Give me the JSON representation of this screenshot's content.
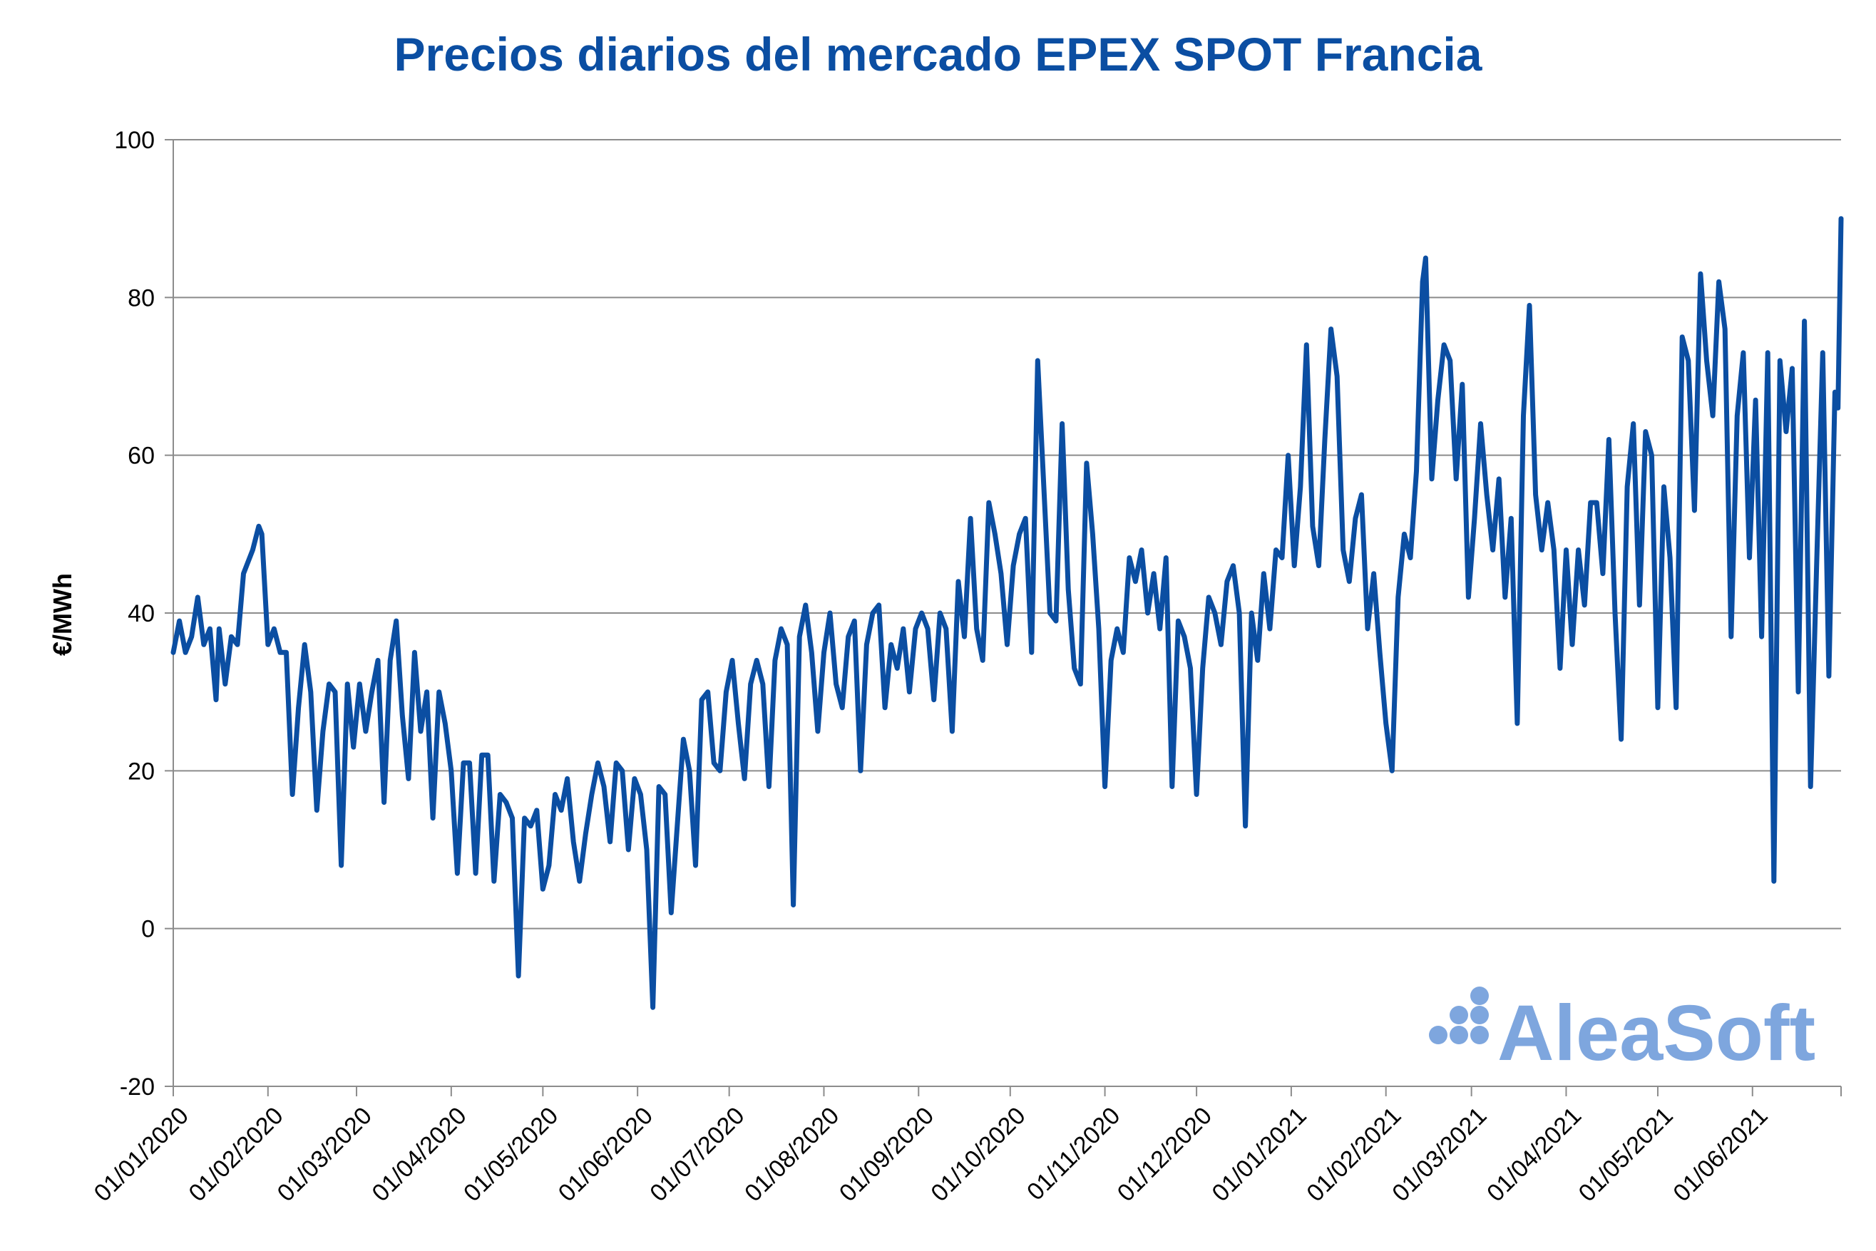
{
  "chart_data": {
    "type": "line",
    "title": "Precios diarios del mercado EPEX SPOT Francia",
    "xlabel": "",
    "ylabel": "€/MWh",
    "ylim": [
      -20,
      100
    ],
    "yticks": [
      -20,
      0,
      20,
      40,
      60,
      80,
      100
    ],
    "grid": true,
    "line_color": "#0b4ea2",
    "title_color": "#0b4ea2",
    "logo_text": "AleaSoft",
    "logo_color": "#7ea6de",
    "x_tick_labels": [
      "01/01/2020",
      "01/02/2020",
      "01/03/2020",
      "01/04/2020",
      "01/05/2020",
      "01/06/2020",
      "01/07/2020",
      "01/08/2020",
      "01/09/2020",
      "01/10/2020",
      "01/11/2020",
      "01/12/2020",
      "01/01/2021",
      "01/02/2021",
      "01/03/2021",
      "01/04/2021",
      "01/05/2021",
      "01/06/2021"
    ],
    "x_start": "2020-01-01",
    "x_end": "2021-06-30",
    "series": [
      {
        "name": "",
        "points": [
          [
            "2020-01-01",
            35
          ],
          [
            "2020-01-03",
            39
          ],
          [
            "2020-01-05",
            35
          ],
          [
            "2020-01-07",
            37
          ],
          [
            "2020-01-09",
            42
          ],
          [
            "2020-01-11",
            36
          ],
          [
            "2020-01-13",
            38
          ],
          [
            "2020-01-15",
            29
          ],
          [
            "2020-01-16",
            38
          ],
          [
            "2020-01-18",
            31
          ],
          [
            "2020-01-20",
            37
          ],
          [
            "2020-01-22",
            36
          ],
          [
            "2020-01-24",
            45
          ],
          [
            "2020-01-27",
            48
          ],
          [
            "2020-01-29",
            51
          ],
          [
            "2020-01-30",
            50
          ],
          [
            "2020-02-01",
            36
          ],
          [
            "2020-02-03",
            38
          ],
          [
            "2020-02-05",
            35
          ],
          [
            "2020-02-07",
            35
          ],
          [
            "2020-02-09",
            17
          ],
          [
            "2020-02-11",
            28
          ],
          [
            "2020-02-13",
            36
          ],
          [
            "2020-02-15",
            30
          ],
          [
            "2020-02-17",
            15
          ],
          [
            "2020-02-19",
            25
          ],
          [
            "2020-02-21",
            31
          ],
          [
            "2020-02-23",
            30
          ],
          [
            "2020-02-25",
            8
          ],
          [
            "2020-02-27",
            31
          ],
          [
            "2020-02-29",
            23
          ],
          [
            "2020-03-02",
            31
          ],
          [
            "2020-03-04",
            25
          ],
          [
            "2020-03-06",
            30
          ],
          [
            "2020-03-08",
            34
          ],
          [
            "2020-03-10",
            16
          ],
          [
            "2020-03-12",
            34
          ],
          [
            "2020-03-14",
            39
          ],
          [
            "2020-03-16",
            27
          ],
          [
            "2020-03-18",
            19
          ],
          [
            "2020-03-20",
            35
          ],
          [
            "2020-03-22",
            25
          ],
          [
            "2020-03-24",
            30
          ],
          [
            "2020-03-26",
            14
          ],
          [
            "2020-03-28",
            30
          ],
          [
            "2020-03-30",
            26
          ],
          [
            "2020-04-01",
            20
          ],
          [
            "2020-04-03",
            7
          ],
          [
            "2020-04-05",
            21
          ],
          [
            "2020-04-07",
            21
          ],
          [
            "2020-04-09",
            7
          ],
          [
            "2020-04-11",
            22
          ],
          [
            "2020-04-13",
            22
          ],
          [
            "2020-04-15",
            6
          ],
          [
            "2020-04-17",
            17
          ],
          [
            "2020-04-19",
            16
          ],
          [
            "2020-04-21",
            14
          ],
          [
            "2020-04-23",
            -6
          ],
          [
            "2020-04-25",
            14
          ],
          [
            "2020-04-27",
            13
          ],
          [
            "2020-04-29",
            15
          ],
          [
            "2020-05-01",
            5
          ],
          [
            "2020-05-03",
            8
          ],
          [
            "2020-05-05",
            17
          ],
          [
            "2020-05-07",
            15
          ],
          [
            "2020-05-09",
            19
          ],
          [
            "2020-05-11",
            11
          ],
          [
            "2020-05-13",
            6
          ],
          [
            "2020-05-15",
            12
          ],
          [
            "2020-05-17",
            17
          ],
          [
            "2020-05-19",
            21
          ],
          [
            "2020-05-21",
            18
          ],
          [
            "2020-05-23",
            11
          ],
          [
            "2020-05-25",
            21
          ],
          [
            "2020-05-27",
            20
          ],
          [
            "2020-05-29",
            10
          ],
          [
            "2020-05-31",
            19
          ],
          [
            "2020-06-02",
            17
          ],
          [
            "2020-06-04",
            10
          ],
          [
            "2020-06-06",
            -10
          ],
          [
            "2020-06-08",
            18
          ],
          [
            "2020-06-10",
            17
          ],
          [
            "2020-06-12",
            2
          ],
          [
            "2020-06-14",
            13
          ],
          [
            "2020-06-16",
            24
          ],
          [
            "2020-06-18",
            20
          ],
          [
            "2020-06-20",
            8
          ],
          [
            "2020-06-22",
            29
          ],
          [
            "2020-06-24",
            30
          ],
          [
            "2020-06-26",
            21
          ],
          [
            "2020-06-28",
            20
          ],
          [
            "2020-06-30",
            30
          ],
          [
            "2020-07-02",
            34
          ],
          [
            "2020-07-04",
            26
          ],
          [
            "2020-07-06",
            19
          ],
          [
            "2020-07-08",
            31
          ],
          [
            "2020-07-10",
            34
          ],
          [
            "2020-07-12",
            31
          ],
          [
            "2020-07-14",
            18
          ],
          [
            "2020-07-16",
            34
          ],
          [
            "2020-07-18",
            38
          ],
          [
            "2020-07-20",
            36
          ],
          [
            "2020-07-22",
            3
          ],
          [
            "2020-07-24",
            37
          ],
          [
            "2020-07-26",
            41
          ],
          [
            "2020-07-28",
            35
          ],
          [
            "2020-07-30",
            25
          ],
          [
            "2020-08-01",
            35
          ],
          [
            "2020-08-03",
            40
          ],
          [
            "2020-08-05",
            31
          ],
          [
            "2020-08-07",
            28
          ],
          [
            "2020-08-09",
            37
          ],
          [
            "2020-08-11",
            39
          ],
          [
            "2020-08-13",
            20
          ],
          [
            "2020-08-15",
            36
          ],
          [
            "2020-08-17",
            40
          ],
          [
            "2020-08-19",
            41
          ],
          [
            "2020-08-21",
            28
          ],
          [
            "2020-08-23",
            36
          ],
          [
            "2020-08-25",
            33
          ],
          [
            "2020-08-27",
            38
          ],
          [
            "2020-08-29",
            30
          ],
          [
            "2020-08-31",
            38
          ],
          [
            "2020-09-02",
            40
          ],
          [
            "2020-09-04",
            38
          ],
          [
            "2020-09-06",
            29
          ],
          [
            "2020-09-08",
            40
          ],
          [
            "2020-09-10",
            38
          ],
          [
            "2020-09-12",
            25
          ],
          [
            "2020-09-14",
            44
          ],
          [
            "2020-09-16",
            37
          ],
          [
            "2020-09-18",
            52
          ],
          [
            "2020-09-20",
            38
          ],
          [
            "2020-09-22",
            34
          ],
          [
            "2020-09-24",
            54
          ],
          [
            "2020-09-26",
            50
          ],
          [
            "2020-09-28",
            45
          ],
          [
            "2020-09-30",
            36
          ],
          [
            "2020-10-02",
            46
          ],
          [
            "2020-10-04",
            50
          ],
          [
            "2020-10-06",
            52
          ],
          [
            "2020-10-08",
            35
          ],
          [
            "2020-10-10",
            72
          ],
          [
            "2020-10-12",
            56
          ],
          [
            "2020-10-14",
            40
          ],
          [
            "2020-10-16",
            39
          ],
          [
            "2020-10-18",
            64
          ],
          [
            "2020-10-20",
            43
          ],
          [
            "2020-10-22",
            33
          ],
          [
            "2020-10-24",
            31
          ],
          [
            "2020-10-26",
            59
          ],
          [
            "2020-10-28",
            50
          ],
          [
            "2020-10-30",
            38
          ],
          [
            "2020-11-01",
            18
          ],
          [
            "2020-11-03",
            34
          ],
          [
            "2020-11-05",
            38
          ],
          [
            "2020-11-07",
            35
          ],
          [
            "2020-11-09",
            47
          ],
          [
            "2020-11-11",
            44
          ],
          [
            "2020-11-13",
            48
          ],
          [
            "2020-11-15",
            40
          ],
          [
            "2020-11-17",
            45
          ],
          [
            "2020-11-19",
            38
          ],
          [
            "2020-11-21",
            47
          ],
          [
            "2020-11-23",
            18
          ],
          [
            "2020-11-25",
            39
          ],
          [
            "2020-11-27",
            37
          ],
          [
            "2020-11-29",
            33
          ],
          [
            "2020-12-01",
            17
          ],
          [
            "2020-12-03",
            33
          ],
          [
            "2020-12-05",
            42
          ],
          [
            "2020-12-07",
            40
          ],
          [
            "2020-12-09",
            36
          ],
          [
            "2020-12-11",
            44
          ],
          [
            "2020-12-13",
            46
          ],
          [
            "2020-12-15",
            40
          ],
          [
            "2020-12-17",
            13
          ],
          [
            "2020-12-19",
            40
          ],
          [
            "2020-12-21",
            34
          ],
          [
            "2020-12-23",
            45
          ],
          [
            "2020-12-25",
            38
          ],
          [
            "2020-12-27",
            48
          ],
          [
            "2020-12-29",
            47
          ],
          [
            "2020-12-31",
            60
          ],
          [
            "2021-01-02",
            46
          ],
          [
            "2021-01-04",
            56
          ],
          [
            "2021-01-06",
            74
          ],
          [
            "2021-01-08",
            51
          ],
          [
            "2021-01-10",
            46
          ],
          [
            "2021-01-12",
            62
          ],
          [
            "2021-01-14",
            76
          ],
          [
            "2021-01-16",
            70
          ],
          [
            "2021-01-18",
            48
          ],
          [
            "2021-01-20",
            44
          ],
          [
            "2021-01-22",
            52
          ],
          [
            "2021-01-24",
            55
          ],
          [
            "2021-01-26",
            38
          ],
          [
            "2021-01-28",
            45
          ],
          [
            "2021-01-30",
            35
          ],
          [
            "2021-02-01",
            26
          ],
          [
            "2021-02-03",
            20
          ],
          [
            "2021-02-05",
            42
          ],
          [
            "2021-02-07",
            50
          ],
          [
            "2021-02-09",
            47
          ],
          [
            "2021-02-11",
            58
          ],
          [
            "2021-02-13",
            82
          ],
          [
            "2021-02-14",
            85
          ],
          [
            "2021-02-16",
            57
          ],
          [
            "2021-02-18",
            67
          ],
          [
            "2021-02-20",
            74
          ],
          [
            "2021-02-22",
            72
          ],
          [
            "2021-02-24",
            57
          ],
          [
            "2021-02-26",
            69
          ],
          [
            "2021-02-28",
            42
          ],
          [
            "2021-03-02",
            52
          ],
          [
            "2021-03-04",
            64
          ],
          [
            "2021-03-06",
            55
          ],
          [
            "2021-03-08",
            48
          ],
          [
            "2021-03-10",
            57
          ],
          [
            "2021-03-12",
            42
          ],
          [
            "2021-03-14",
            52
          ],
          [
            "2021-03-16",
            26
          ],
          [
            "2021-03-18",
            65
          ],
          [
            "2021-03-20",
            79
          ],
          [
            "2021-03-22",
            55
          ],
          [
            "2021-03-24",
            48
          ],
          [
            "2021-03-26",
            54
          ],
          [
            "2021-03-28",
            48
          ],
          [
            "2021-03-30",
            33
          ],
          [
            "2021-04-01",
            48
          ],
          [
            "2021-04-03",
            36
          ],
          [
            "2021-04-05",
            48
          ],
          [
            "2021-04-07",
            41
          ],
          [
            "2021-04-09",
            54
          ],
          [
            "2021-04-11",
            54
          ],
          [
            "2021-04-13",
            45
          ],
          [
            "2021-04-15",
            62
          ],
          [
            "2021-04-17",
            40
          ],
          [
            "2021-04-19",
            24
          ],
          [
            "2021-04-21",
            56
          ],
          [
            "2021-04-23",
            64
          ],
          [
            "2021-04-25",
            41
          ],
          [
            "2021-04-27",
            63
          ],
          [
            "2021-04-29",
            60
          ],
          [
            "2021-05-01",
            28
          ],
          [
            "2021-05-03",
            56
          ],
          [
            "2021-05-05",
            47
          ],
          [
            "2021-05-07",
            28
          ],
          [
            "2021-05-09",
            75
          ],
          [
            "2021-05-11",
            72
          ],
          [
            "2021-05-13",
            53
          ],
          [
            "2021-05-15",
            83
          ],
          [
            "2021-05-17",
            72
          ],
          [
            "2021-05-19",
            65
          ],
          [
            "2021-05-21",
            82
          ],
          [
            "2021-05-23",
            76
          ],
          [
            "2021-05-25",
            37
          ],
          [
            "2021-05-27",
            65
          ],
          [
            "2021-05-29",
            73
          ],
          [
            "2021-05-31",
            47
          ],
          [
            "2021-06-02",
            67
          ],
          [
            "2021-06-04",
            37
          ],
          [
            "2021-06-06",
            73
          ],
          [
            "2021-06-08",
            6
          ],
          [
            "2021-06-10",
            72
          ],
          [
            "2021-06-12",
            63
          ],
          [
            "2021-06-14",
            71
          ],
          [
            "2021-06-16",
            30
          ],
          [
            "2021-06-18",
            77
          ],
          [
            "2021-06-20",
            18
          ],
          [
            "2021-06-22",
            46
          ],
          [
            "2021-06-24",
            73
          ],
          [
            "2021-06-26",
            32
          ],
          [
            "2021-06-28",
            68
          ],
          [
            "2021-06-29",
            66
          ],
          [
            "2021-06-30",
            90
          ]
        ]
      }
    ]
  }
}
